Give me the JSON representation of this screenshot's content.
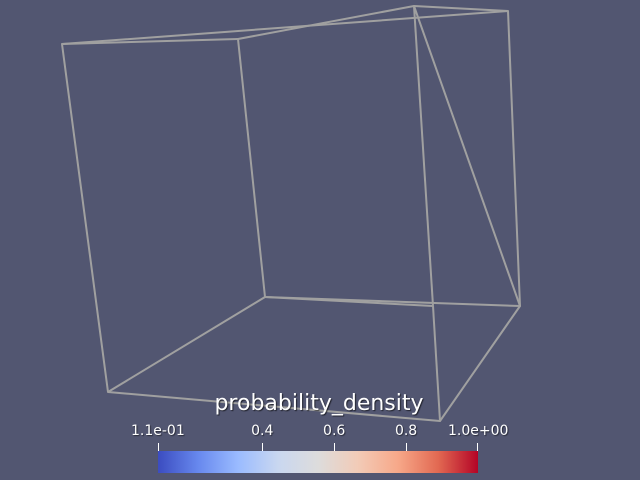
{
  "viewport": {
    "background": "#525671",
    "outline_color": "#a0a0a0"
  },
  "colorbar": {
    "title": "probability_density",
    "colormap": "coolwarm",
    "range": [
      0.11,
      1.0
    ],
    "ticks": [
      {
        "label": "1.1e-01",
        "value": 0.11,
        "kind": "min"
      },
      {
        "label": "0.4",
        "value": 0.4,
        "kind": "mid"
      },
      {
        "label": "0.6",
        "value": 0.6,
        "kind": "mid"
      },
      {
        "label": "0.8",
        "value": 0.8,
        "kind": "mid"
      },
      {
        "label": "1.0e+00",
        "value": 1.0,
        "kind": "max"
      }
    ]
  }
}
